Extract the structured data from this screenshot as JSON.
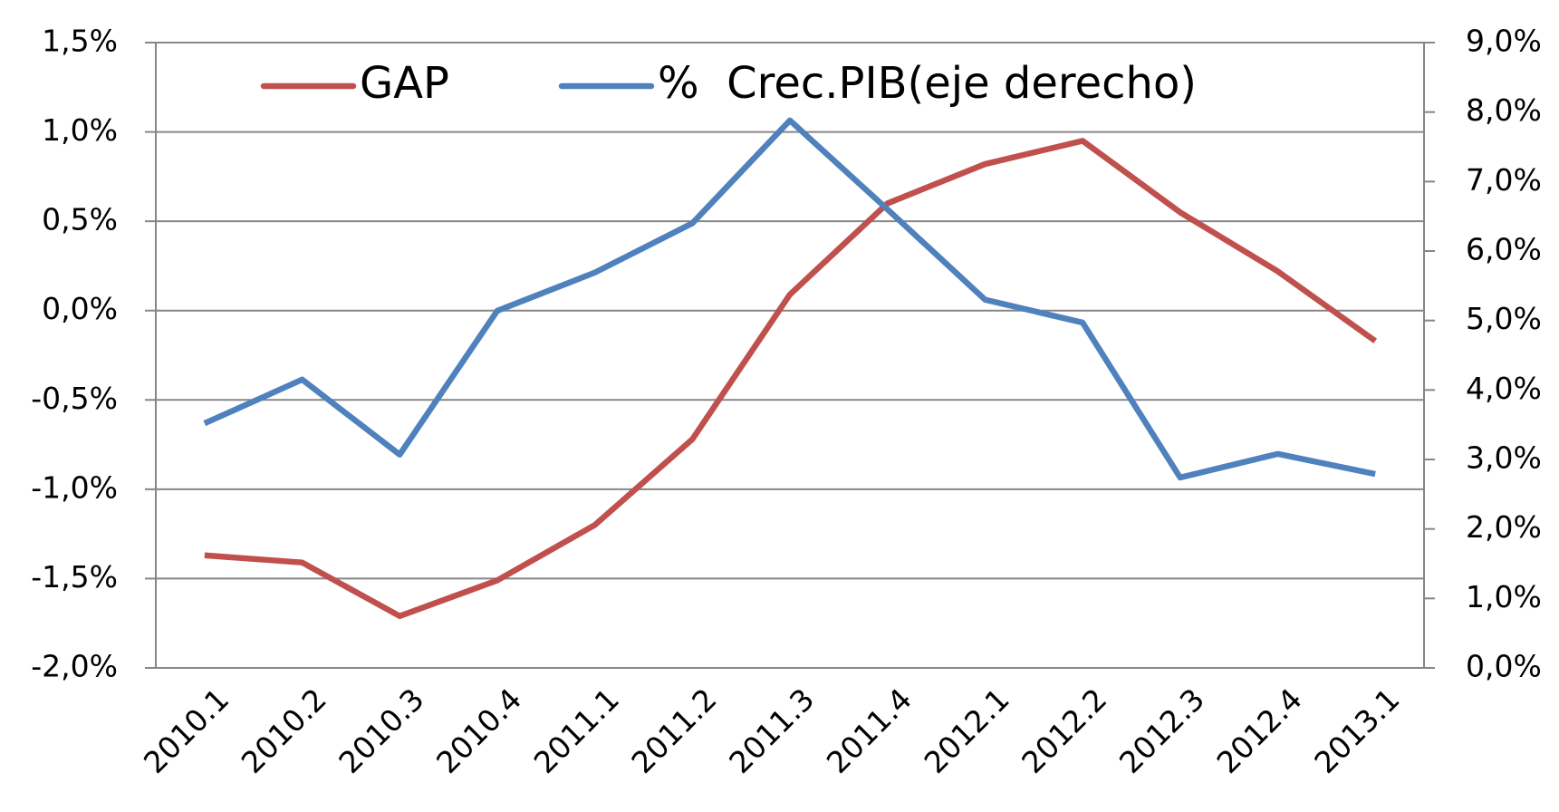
{
  "chart_data": {
    "type": "line",
    "categories": [
      "2010.1",
      "2010.2",
      "2010.3",
      "2010.4",
      "2011.1",
      "2011.2",
      "2011.3",
      "2011.4",
      "2012.1",
      "2012.2",
      "2012.3",
      "2012.4",
      "2013.1"
    ],
    "series": [
      {
        "name": "GAP",
        "color": "#c0504d",
        "values": [
          -1.37,
          -1.41,
          -1.71,
          -1.51,
          -1.2,
          -0.72,
          0.09,
          0.6,
          0.82,
          0.95,
          0.55,
          0.22,
          -0.17
        ]
      },
      {
        "name": "%  Crec.PIB(eje derecho)",
        "color": "#4f81bd",
        "axis": "y2",
        "values": [
          3.52,
          4.15,
          3.07,
          5.14,
          5.69,
          6.4,
          7.88,
          6.6,
          5.3,
          4.97,
          2.74,
          3.08,
          2.79
        ]
      }
    ],
    "ylim": [
      -2.0,
      1.5
    ],
    "yticks": [
      {
        "value": -2.0,
        "label": "-2,0%"
      },
      {
        "value": -1.5,
        "label": "-1,5%"
      },
      {
        "value": -1.0,
        "label": "-1,0%"
      },
      {
        "value": -0.5,
        "label": "-0,5%"
      },
      {
        "value": 0,
        "label": "0,0%"
      },
      {
        "value": 0.5,
        "label": "0,5%"
      },
      {
        "value": 1.0,
        "label": "1,0%"
      },
      {
        "value": 1.5,
        "label": "1,5%"
      }
    ],
    "y2lim": [
      0,
      9.0
    ],
    "y2ticks": [
      {
        "value": 0,
        "label": "0,0%"
      },
      {
        "value": 1,
        "label": "1,0%"
      },
      {
        "value": 2,
        "label": "2,0%"
      },
      {
        "value": 3,
        "label": "3,0%"
      },
      {
        "value": 4,
        "label": "4,0%"
      },
      {
        "value": 5,
        "label": "5,0%"
      },
      {
        "value": 6,
        "label": "6,0%"
      },
      {
        "value": 7,
        "label": "7,0%"
      },
      {
        "value": 8,
        "label": "8,0%"
      },
      {
        "value": 9,
        "label": "9,0%"
      }
    ],
    "grid": true
  }
}
